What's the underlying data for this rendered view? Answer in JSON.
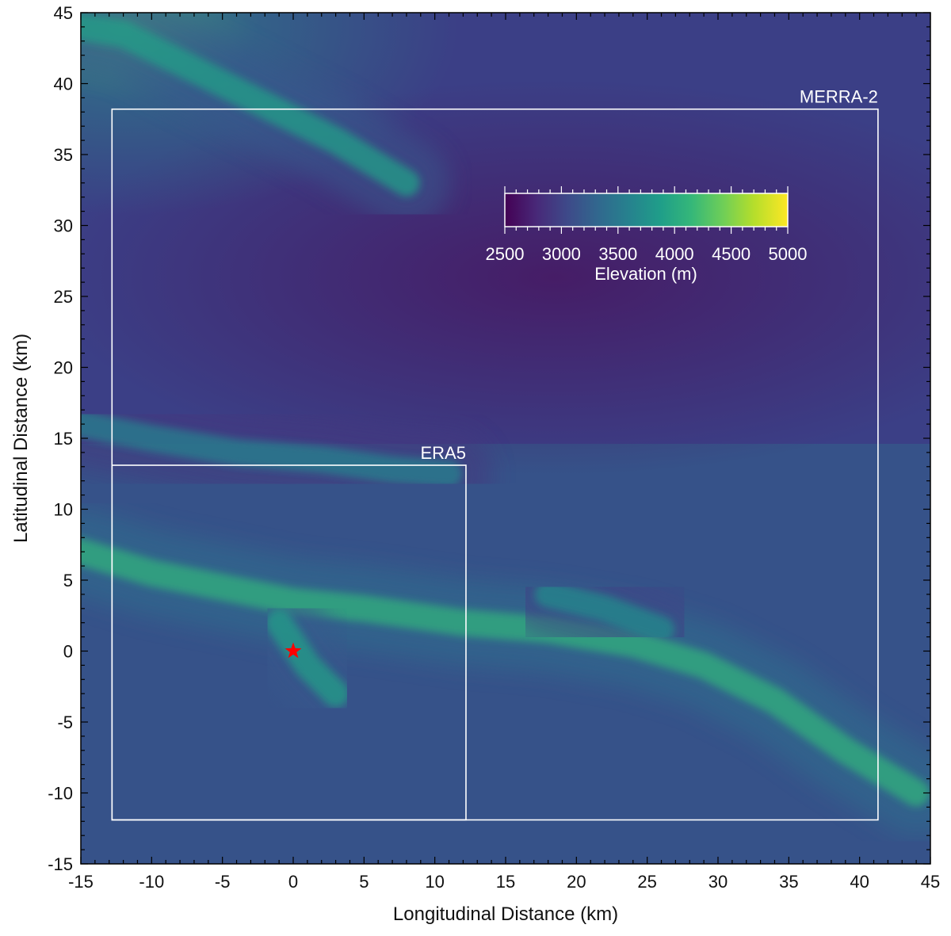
{
  "chart_data": {
    "type": "heatmap",
    "title": "",
    "xlabel": "Longitudinal Distance (km)",
    "ylabel": "Latitudinal Distance (km)",
    "xlim": [
      -15,
      45
    ],
    "ylim": [
      -15,
      45
    ],
    "xticks": [
      "-15",
      "-10",
      "-5",
      "0",
      "5",
      "10",
      "15",
      "20",
      "25",
      "30",
      "35",
      "40",
      "45"
    ],
    "yticks": [
      "-15",
      "-10",
      "-5",
      "0",
      "5",
      "10",
      "15",
      "20",
      "25",
      "30",
      "35",
      "40",
      "45"
    ],
    "colorbar": {
      "label": "Elevation (m)",
      "range": [
        2500,
        5000
      ],
      "ticks": [
        "2500",
        "3000",
        "3500",
        "4000",
        "4500",
        "5000"
      ],
      "colormap": [
        "#440154",
        "#482878",
        "#3e4989",
        "#31688e",
        "#26828e",
        "#1f9e89",
        "#35b779",
        "#6ece58",
        "#b5de2b",
        "#fde725"
      ]
    },
    "regions": [
      {
        "label": "MERRA-2",
        "x": [
          -12.8,
          41.3
        ],
        "y": [
          -11.9,
          38.2
        ],
        "color": "#ffffff"
      },
      {
        "label": "ERA5",
        "x": [
          -12.8,
          12.2
        ],
        "y": [
          -11.9,
          13.1
        ],
        "color": "#ffffff"
      }
    ],
    "marker": {
      "symbol": "star",
      "x": 0,
      "y": 0,
      "color": "#ff0000"
    },
    "ridges": [
      {
        "points": [
          [
            -15,
            44
          ],
          [
            -12,
            43.5
          ],
          [
            -8,
            41.5
          ],
          [
            -3,
            39
          ],
          [
            3,
            36
          ],
          [
            8,
            33
          ]
        ],
        "elevation": 3900
      },
      {
        "points": [
          [
            -15,
            16
          ],
          [
            -10,
            15
          ],
          [
            -4,
            14
          ],
          [
            2,
            13.5
          ],
          [
            7,
            12.8
          ],
          [
            11,
            12.5
          ]
        ],
        "elevation": 3600
      },
      {
        "points": [
          [
            -15,
            7
          ],
          [
            -10,
            5.5
          ],
          [
            -5,
            4.5
          ],
          [
            0,
            3.5
          ],
          [
            5,
            3
          ],
          [
            12,
            2
          ],
          [
            18,
            1.5
          ],
          [
            24,
            0.5
          ],
          [
            29,
            -1
          ],
          [
            34,
            -3.5
          ],
          [
            39,
            -7
          ],
          [
            44,
            -10
          ]
        ],
        "elevation": 4100
      },
      {
        "points": [
          [
            -1,
            2
          ],
          [
            1,
            -1
          ],
          [
            3,
            -3
          ]
        ],
        "elevation": 3900
      },
      {
        "points": [
          [
            18,
            4
          ],
          [
            22,
            3
          ],
          [
            26,
            1.5
          ]
        ],
        "elevation": 3700
      }
    ]
  }
}
